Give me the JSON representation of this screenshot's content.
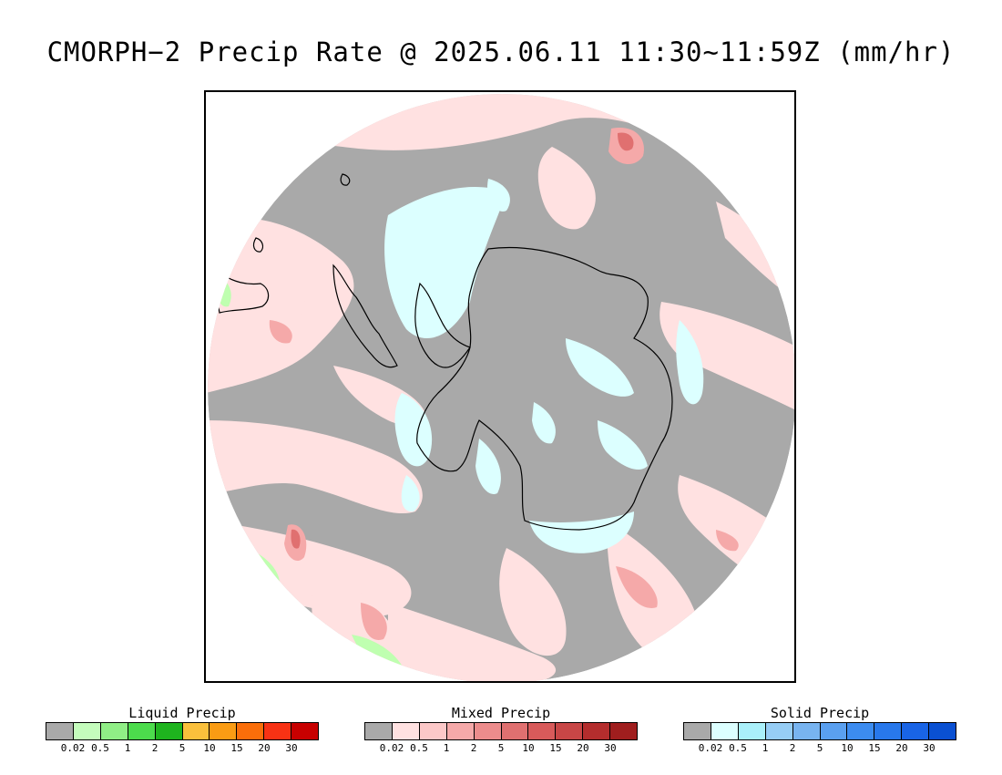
{
  "title": "CMORPH−2 Precip Rate @ 2025.06.11 11:30~11:59Z (mm/hr)",
  "map": {
    "projection": "south-polar-stereographic",
    "colors": {
      "no_precip": "#a9a9a9",
      "mixed_light": "#ffe1e1",
      "mixed_med": "#f5a9a9",
      "mixed_heavy": "#e07070",
      "solid_light": "#dcffff",
      "liquid_light": "#bfffb0",
      "liquid_med": "#90f080",
      "coast": "#000000"
    }
  },
  "legends": [
    {
      "id": "liquid",
      "title": "Liquid Precip",
      "colors": [
        "#a9a9a9",
        "#c4fcbc",
        "#90ee86",
        "#4cdc4c",
        "#1eb41e",
        "#fac03c",
        "#fa9c14",
        "#fa6e0a",
        "#f83214",
        "#c80000"
      ],
      "ticks": [
        "0.02",
        "0.5",
        "1",
        "2",
        "5",
        "10",
        "15",
        "20",
        "30"
      ]
    },
    {
      "id": "mixed",
      "title": "Mixed Precip",
      "colors": [
        "#a9a9a9",
        "#ffe1e1",
        "#fcc8c8",
        "#f5a9a9",
        "#ec8c8c",
        "#e07070",
        "#d85a5a",
        "#c84646",
        "#b42d2d",
        "#a01e1e"
      ],
      "ticks": [
        "0.02",
        "0.5",
        "1",
        "2",
        "5",
        "10",
        "15",
        "20",
        "30"
      ]
    },
    {
      "id": "solid",
      "title": "Solid Precip",
      "colors": [
        "#a9a9a9",
        "#dcffff",
        "#aaf0fa",
        "#96cdf5",
        "#78b4f0",
        "#5aa0f0",
        "#3c8cf0",
        "#2878eb",
        "#1964e6",
        "#0a50d2"
      ],
      "ticks": [
        "0.02",
        "0.5",
        "1",
        "2",
        "5",
        "10",
        "15",
        "20",
        "30"
      ]
    }
  ]
}
